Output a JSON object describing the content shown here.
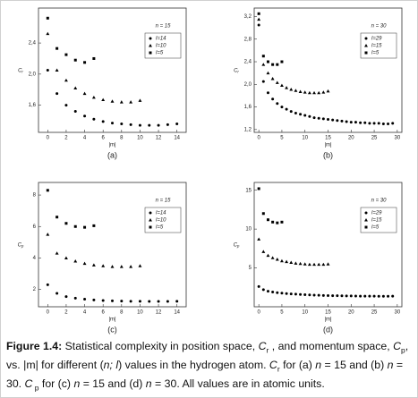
{
  "chart_data": [
    {
      "type": "scatter",
      "label": "(a)",
      "xlabel": "|m|",
      "ylabel": "C",
      "ylabel_sub": "r",
      "legend_title": "n = 15",
      "xlim": [
        -1,
        15
      ],
      "xticks": [
        0,
        2,
        4,
        6,
        8,
        10,
        12,
        14
      ],
      "ylim": [
        1.25,
        2.85
      ],
      "yticks": [
        {
          "value": 1.6,
          "label": "1,6"
        },
        {
          "value": 2.0,
          "label": "2,0"
        },
        {
          "value": 2.4,
          "label": "2,4"
        }
      ],
      "series": [
        {
          "name": "l=14",
          "color": "#000000",
          "x": [
            0,
            1,
            2,
            3,
            4,
            5,
            6,
            7,
            8,
            9,
            10,
            11,
            12,
            13,
            14
          ],
          "values": [
            2.05,
            1.75,
            1.6,
            1.52,
            1.46,
            1.42,
            1.39,
            1.37,
            1.36,
            1.35,
            1.34,
            1.34,
            1.34,
            1.35,
            1.36
          ]
        },
        {
          "name": "l=10",
          "color": "#000000",
          "x": [
            0,
            1,
            2,
            3,
            4,
            5,
            6,
            7,
            8,
            9,
            10
          ],
          "values": [
            2.52,
            2.05,
            1.92,
            1.82,
            1.75,
            1.7,
            1.67,
            1.65,
            1.64,
            1.64,
            1.66
          ]
        },
        {
          "name": "l=5",
          "color": "#000000",
          "x": [
            0,
            1,
            2,
            3,
            4,
            5
          ],
          "values": [
            2.72,
            2.33,
            2.25,
            2.18,
            2.15,
            2.2
          ]
        }
      ]
    },
    {
      "type": "scatter",
      "label": "(b)",
      "xlabel": "|m|",
      "ylabel": "C",
      "ylabel_sub": "r",
      "legend_title": "n = 30",
      "xlim": [
        -1,
        31
      ],
      "xticks": [
        0,
        5,
        10,
        15,
        20,
        25,
        30
      ],
      "ylim": [
        1.15,
        3.35
      ],
      "yticks": [
        {
          "value": 1.2,
          "label": "1,2"
        },
        {
          "value": 1.6,
          "label": "1,6"
        },
        {
          "value": 2.0,
          "label": "2,0"
        },
        {
          "value": 2.4,
          "label": "2,4"
        },
        {
          "value": 2.8,
          "label": "2,8"
        },
        {
          "value": 3.2,
          "label": "3,2"
        }
      ],
      "series": [
        {
          "name": "l=29",
          "color": "#000000",
          "x": [
            0,
            1,
            2,
            3,
            4,
            5,
            6,
            7,
            8,
            9,
            10,
            11,
            12,
            13,
            14,
            15,
            16,
            17,
            18,
            19,
            20,
            21,
            22,
            23,
            24,
            25,
            26,
            27,
            28,
            29
          ],
          "values": [
            3.05,
            2.05,
            1.85,
            1.74,
            1.66,
            1.6,
            1.56,
            1.52,
            1.49,
            1.47,
            1.45,
            1.43,
            1.41,
            1.4,
            1.39,
            1.38,
            1.37,
            1.36,
            1.35,
            1.34,
            1.33,
            1.33,
            1.32,
            1.32,
            1.31,
            1.31,
            1.31,
            1.3,
            1.3,
            1.31
          ]
        },
        {
          "name": "l=15",
          "color": "#000000",
          "x": [
            0,
            1,
            2,
            3,
            4,
            5,
            6,
            7,
            8,
            9,
            10,
            11,
            12,
            13,
            14,
            15
          ],
          "values": [
            3.15,
            2.35,
            2.2,
            2.1,
            2.03,
            1.98,
            1.94,
            1.91,
            1.89,
            1.87,
            1.86,
            1.85,
            1.85,
            1.85,
            1.86,
            1.88
          ]
        },
        {
          "name": "l=5",
          "color": "#000000",
          "x": [
            0,
            1,
            2,
            3,
            4,
            5
          ],
          "values": [
            3.25,
            2.5,
            2.4,
            2.35,
            2.35,
            2.4
          ]
        }
      ]
    },
    {
      "type": "scatter",
      "label": "(c)",
      "xlabel": "|m|",
      "ylabel": "C",
      "ylabel_sub": "p",
      "legend_title": "n = 15",
      "xlim": [
        -1,
        15
      ],
      "xticks": [
        0,
        2,
        4,
        6,
        8,
        10,
        12,
        14
      ],
      "ylim": [
        0.9,
        8.8
      ],
      "yticks": [
        2,
        4,
        6,
        8
      ],
      "series": [
        {
          "name": "l=14",
          "color": "#000000",
          "x": [
            0,
            1,
            2,
            3,
            4,
            5,
            6,
            7,
            8,
            9,
            10,
            11,
            12,
            13,
            14
          ],
          "values": [
            2.3,
            1.75,
            1.55,
            1.45,
            1.38,
            1.33,
            1.3,
            1.28,
            1.26,
            1.25,
            1.25,
            1.24,
            1.24,
            1.24,
            1.25
          ]
        },
        {
          "name": "l=10",
          "color": "#000000",
          "x": [
            0,
            1,
            2,
            3,
            4,
            5,
            6,
            7,
            8,
            9,
            10
          ],
          "values": [
            5.5,
            4.3,
            4.0,
            3.8,
            3.65,
            3.55,
            3.5,
            3.45,
            3.45,
            3.45,
            3.5
          ]
        },
        {
          "name": "l=5",
          "color": "#000000",
          "x": [
            0,
            1,
            2,
            3,
            4,
            5
          ],
          "values": [
            8.3,
            6.6,
            6.2,
            6.0,
            5.95,
            6.05
          ]
        }
      ]
    },
    {
      "type": "scatter",
      "label": "(d)",
      "xlabel": "|m|",
      "ylabel": "C",
      "ylabel_sub": "p",
      "legend_title": "n = 30",
      "xlim": [
        -1,
        31
      ],
      "xticks": [
        0,
        5,
        10,
        15,
        20,
        25,
        30
      ],
      "ylim": [
        0,
        16
      ],
      "yticks": [
        5,
        10,
        15
      ],
      "series": [
        {
          "name": "l=29",
          "color": "#000000",
          "x": [
            0,
            1,
            2,
            3,
            4,
            5,
            6,
            7,
            8,
            9,
            10,
            11,
            12,
            13,
            14,
            15,
            16,
            17,
            18,
            19,
            20,
            21,
            22,
            23,
            24,
            25,
            26,
            27,
            28,
            29
          ],
          "values": [
            2.6,
            2.2,
            2.0,
            1.9,
            1.82,
            1.76,
            1.7,
            1.66,
            1.62,
            1.58,
            1.55,
            1.52,
            1.5,
            1.48,
            1.46,
            1.44,
            1.43,
            1.42,
            1.41,
            1.4,
            1.39,
            1.38,
            1.37,
            1.37,
            1.36,
            1.36,
            1.35,
            1.35,
            1.35,
            1.36
          ]
        },
        {
          "name": "l=15",
          "color": "#000000",
          "x": [
            0,
            1,
            2,
            3,
            4,
            5,
            6,
            7,
            8,
            9,
            10,
            11,
            12,
            13,
            14,
            15
          ],
          "values": [
            8.7,
            7.1,
            6.6,
            6.3,
            6.1,
            5.9,
            5.8,
            5.7,
            5.6,
            5.55,
            5.5,
            5.45,
            5.45,
            5.45,
            5.45,
            5.5
          ]
        },
        {
          "name": "l=5",
          "color": "#000000",
          "x": [
            0,
            1,
            2,
            3,
            4,
            5
          ],
          "values": [
            15.2,
            12.0,
            11.2,
            10.9,
            10.8,
            10.9
          ]
        }
      ]
    }
  ],
  "caption": {
    "parts": [
      "Figure 1.4:",
      " Statistical complexity in position space, ",
      "C",
      "r",
      " , and momentum space, ",
      "C",
      "p",
      ", vs. |m| for different (",
      "n; l",
      ") values in the hydrogen atom. ",
      "C",
      "r",
      " for (a) ",
      "n",
      " = 15 and (b) ",
      "n",
      " = 30. ",
      "C",
      " p",
      " for (c) ",
      "n",
      " = 15 and (d) ",
      "n",
      " = 30. All values are in atomic units."
    ]
  }
}
